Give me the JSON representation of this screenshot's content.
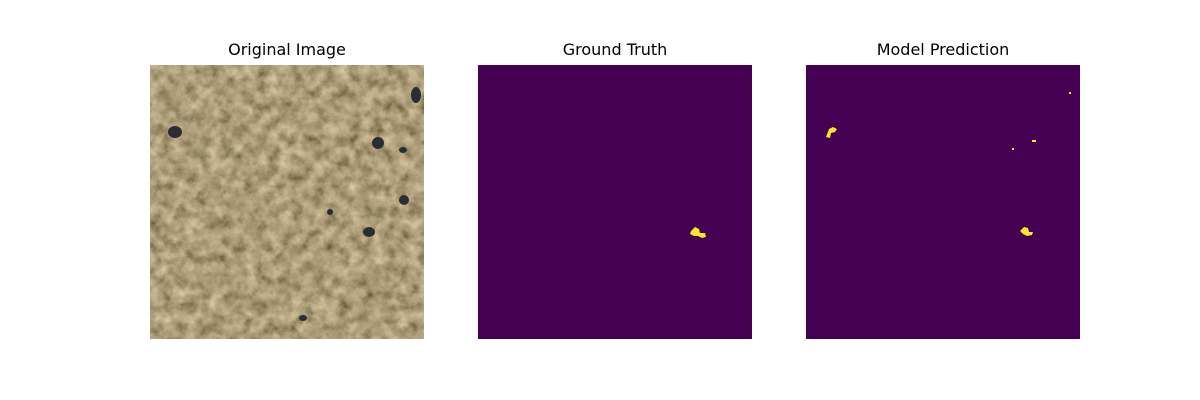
{
  "figure": {
    "panels": [
      {
        "title": "Original Image"
      },
      {
        "title": "Ground Truth"
      },
      {
        "title": "Model Prediction"
      }
    ]
  },
  "colors": {
    "background_class": "#440154",
    "foreground_class": "#fde725",
    "tissue_base": "#6b5638"
  }
}
